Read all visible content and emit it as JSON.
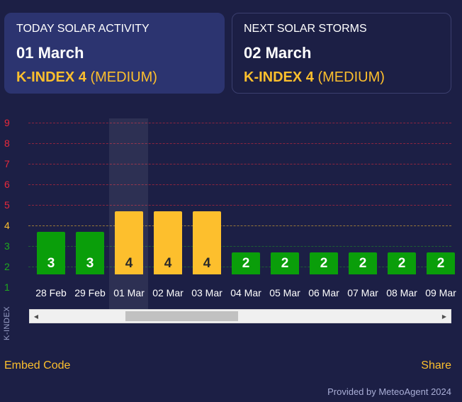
{
  "today": {
    "heading": "TODAY SOLAR ACTIVITY",
    "date": "01 March",
    "kindex_label": "K-INDEX 4",
    "level": "(MEDIUM)"
  },
  "next": {
    "heading": "NEXT SOLAR STORMS",
    "date": "02 March",
    "kindex_label": "K-INDEX 4",
    "level": "(MEDIUM)"
  },
  "chart_data": {
    "type": "bar",
    "ylabel": "K-INDEX",
    "ylim": [
      0,
      9
    ],
    "yticks": [
      "1",
      "2",
      "3",
      "4",
      "5",
      "6",
      "7",
      "8",
      "9"
    ],
    "ytick_colors": [
      "#1faa1f",
      "#1faa1f",
      "#1faa1f",
      "#fdbf2d",
      "#e8293b",
      "#e8293b",
      "#e8293b",
      "#e8293b",
      "#e8293b"
    ],
    "categories": [
      "28 Feb",
      "29 Feb",
      "01 Mar",
      "02 Mar",
      "03 Mar",
      "04 Mar",
      "05 Mar",
      "06 Mar",
      "07 Mar",
      "08 Mar",
      "09 Mar"
    ],
    "values": [
      3,
      3,
      4,
      4,
      4,
      2,
      2,
      2,
      2,
      2,
      2
    ],
    "bar_top_values": [
      3.7,
      3.7,
      4.7,
      4.7,
      4.7,
      2.7,
      2.7,
      2.7,
      2.7,
      2.7,
      2.7
    ],
    "highlighted_category": "01 Mar",
    "colors": {
      "low": "#0a9e0a",
      "medium": "#fdbf2d"
    },
    "grid": true
  },
  "links": {
    "embed": "Embed Code",
    "share": "Share"
  },
  "provided_by": "Provided by MeteoAgent 2024"
}
